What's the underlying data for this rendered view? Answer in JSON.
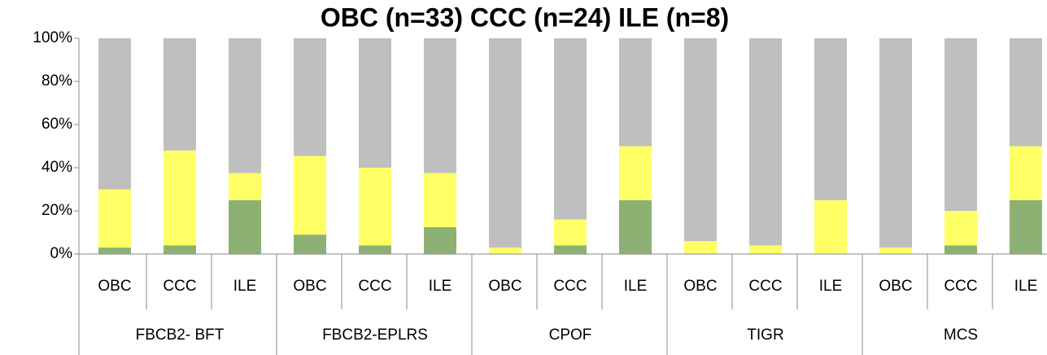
{
  "chart_data": {
    "type": "stacked_bar",
    "title": "OBC (n=33) CCC (n=24) ILE (n=8)",
    "categories": [
      "OBC",
      "CCC",
      "ILE",
      "OBC",
      "CCC",
      "ILE",
      "OBC",
      "CCC",
      "ILE",
      "OBC",
      "CCC",
      "ILE",
      "OBC",
      "CCC",
      "ILE"
    ],
    "groups": [
      "FBCB2- BFT",
      "FBCB2-EPLRS",
      "CPOF",
      "TIGR",
      "MCS"
    ],
    "series": [
      {
        "color": "#8db173",
        "values": [
          3,
          4,
          25,
          9,
          4,
          12.5,
          0,
          4,
          25,
          0,
          0,
          0,
          0,
          4,
          25
        ]
      },
      {
        "color": "#ffff66",
        "values": [
          27,
          44,
          12.5,
          36.5,
          36,
          25,
          3,
          12,
          25,
          6,
          4,
          25,
          3,
          16,
          25
        ]
      },
      {
        "color": "#bfbfbf",
        "values": [
          70,
          52,
          62.5,
          54.5,
          60,
          62.5,
          97,
          84,
          50,
          94,
          96,
          75,
          97,
          80,
          50
        ]
      }
    ],
    "ylim": [
      0,
      100
    ],
    "yticks": [
      {
        "value": 0,
        "label": "0%"
      },
      {
        "value": 20,
        "label": "20%"
      },
      {
        "value": 40,
        "label": "40%"
      },
      {
        "value": 60,
        "label": "60%"
      },
      {
        "value": 80,
        "label": "80%"
      },
      {
        "value": 100,
        "label": "100%"
      }
    ],
    "grid": false
  }
}
